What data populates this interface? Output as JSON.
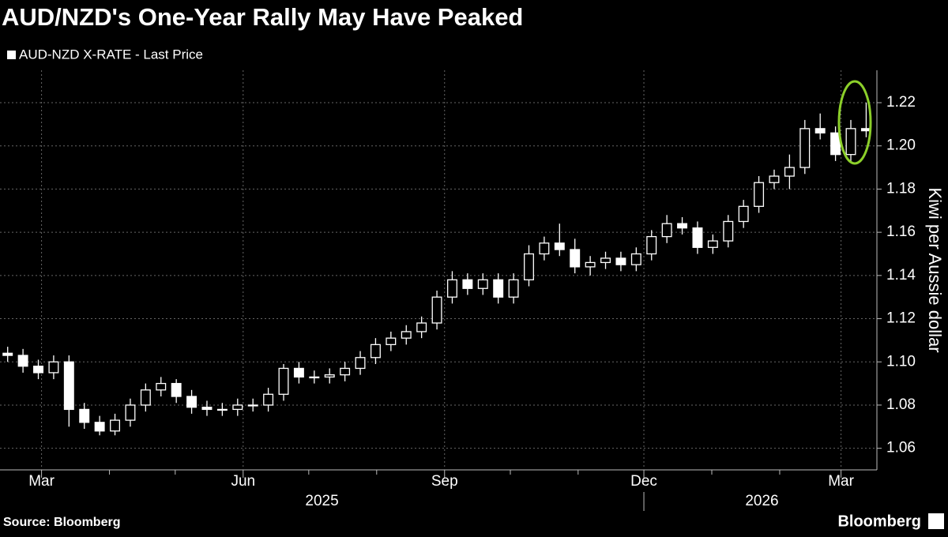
{
  "chart_data": {
    "type": "candlestick",
    "title": "AUD/NZD's One-Year Rally May Have Peaked",
    "ylabel": "Kiwi per Aussie dollar",
    "source": "Source: Bloomberg",
    "brand": "Bloomberg",
    "series": [
      {
        "name": "AUD-NZD X-RATE - Last Price",
        "color": "#ffffff",
        "open": [
          1.104,
          1.103,
          1.098,
          1.095,
          1.1,
          1.078,
          1.072,
          1.068,
          1.073,
          1.08,
          1.087,
          1.09,
          1.084,
          1.079,
          1.078,
          1.078,
          1.08,
          1.08,
          1.085,
          1.097,
          1.093,
          1.093,
          1.094,
          1.097,
          1.102,
          1.108,
          1.111,
          1.114,
          1.118,
          1.13,
          1.138,
          1.134,
          1.138,
          1.13,
          1.138,
          1.15,
          1.155,
          1.152,
          1.144,
          1.146,
          1.148,
          1.145,
          1.15,
          1.158,
          1.164,
          1.162,
          1.153,
          1.156,
          1.165,
          1.172,
          1.183,
          1.186,
          1.19,
          1.208,
          1.206,
          1.196,
          1.208
        ],
        "high": [
          1.107,
          1.106,
          1.101,
          1.103,
          1.103,
          1.081,
          1.075,
          1.076,
          1.083,
          1.09,
          1.093,
          1.092,
          1.087,
          1.082,
          1.081,
          1.083,
          1.083,
          1.088,
          1.099,
          1.1,
          1.096,
          1.097,
          1.1,
          1.105,
          1.111,
          1.114,
          1.117,
          1.121,
          1.133,
          1.142,
          1.141,
          1.141,
          1.141,
          1.141,
          1.154,
          1.158,
          1.164,
          1.157,
          1.149,
          1.151,
          1.151,
          1.153,
          1.161,
          1.168,
          1.167,
          1.165,
          1.159,
          1.168,
          1.175,
          1.186,
          1.189,
          1.196,
          1.212,
          1.215,
          1.209,
          1.212,
          1.22
        ],
        "low": [
          1.1,
          1.095,
          1.092,
          1.092,
          1.07,
          1.069,
          1.066,
          1.066,
          1.07,
          1.077,
          1.084,
          1.081,
          1.076,
          1.075,
          1.075,
          1.075,
          1.077,
          1.077,
          1.082,
          1.09,
          1.09,
          1.09,
          1.091,
          1.094,
          1.099,
          1.105,
          1.108,
          1.111,
          1.115,
          1.127,
          1.131,
          1.131,
          1.127,
          1.127,
          1.135,
          1.147,
          1.149,
          1.141,
          1.14,
          1.143,
          1.142,
          1.142,
          1.147,
          1.155,
          1.159,
          1.15,
          1.15,
          1.153,
          1.162,
          1.169,
          1.18,
          1.18,
          1.187,
          1.203,
          1.193,
          1.193,
          1.204
        ],
        "close": [
          1.103,
          1.098,
          1.095,
          1.1,
          1.078,
          1.072,
          1.068,
          1.073,
          1.08,
          1.087,
          1.09,
          1.084,
          1.079,
          1.078,
          1.078,
          1.08,
          1.08,
          1.085,
          1.097,
          1.093,
          1.093,
          1.094,
          1.097,
          1.102,
          1.108,
          1.111,
          1.114,
          1.118,
          1.13,
          1.138,
          1.134,
          1.138,
          1.13,
          1.138,
          1.15,
          1.155,
          1.152,
          1.144,
          1.146,
          1.148,
          1.145,
          1.15,
          1.158,
          1.164,
          1.162,
          1.153,
          1.156,
          1.165,
          1.172,
          1.183,
          1.186,
          1.19,
          1.208,
          1.206,
          1.196,
          1.208,
          1.207
        ]
      }
    ],
    "xlim": [
      0,
      57.2
    ],
    "xticks": [
      {
        "value": 2.71,
        "label": "Mar"
      },
      {
        "value": 15.86,
        "label": "Jun"
      },
      {
        "value": 29.0,
        "label": "Sep"
      },
      {
        "value": 42.0,
        "label": "Dec"
      },
      {
        "value": 54.86,
        "label": "Mar"
      }
    ],
    "xminorticks": [
      7.14,
      11.43,
      20.14,
      24.57,
      33.29,
      37.71,
      46.43,
      50.86
    ],
    "xyears": [
      {
        "value": 21.0,
        "label": "2025"
      },
      {
        "value": 49.7,
        "label": "2026"
      }
    ],
    "ylim": [
      1.05,
      1.235
    ],
    "yticks": [
      1.06,
      1.08,
      {
        "value": 1.1,
        "label": "1.10"
      },
      1.12,
      1.14,
      1.16,
      1.18,
      {
        "value": 1.2,
        "label": "1.20"
      },
      1.22
    ],
    "grid": true
  }
}
